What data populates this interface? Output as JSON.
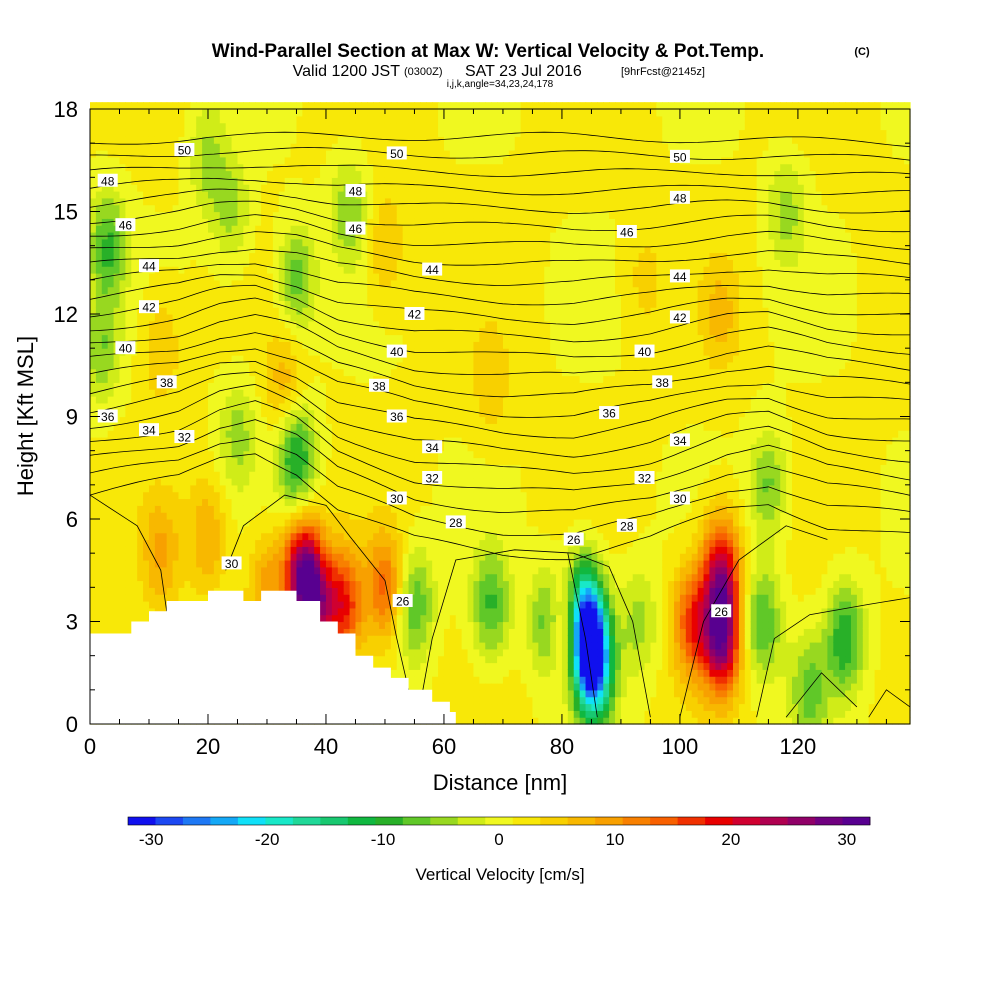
{
  "title": {
    "main": "Wind-Parallel Section at Max W: Vertical Velocity & Pot.Temp.",
    "copyright": "(C)",
    "valid_prefix": "Valid 1200 JST",
    "valid_zulu": "(0300Z)",
    "valid_date": "SAT 23 Jul 2016",
    "forecast": "[9hrFcst@2145z]",
    "indices": "i,j,k,angle=34,23,24,178"
  },
  "chart_data": {
    "type": "heatmap",
    "xlabel": "Distance [nm]",
    "ylabel": "Height [Kft MSL]",
    "xlim": [
      0,
      139
    ],
    "ylim": [
      0,
      18
    ],
    "x_ticks": [
      "0",
      "20",
      "40",
      "60",
      "80",
      "100",
      "120"
    ],
    "y_ticks": [
      "0",
      "3",
      "6",
      "9",
      "12",
      "15",
      "18"
    ],
    "colorbar": {
      "label": "Vertical Velocity [cm/s]",
      "range": [
        -32,
        32
      ],
      "tick_labels": [
        "-30",
        "-20",
        "-10",
        "0",
        "10",
        "20",
        "30"
      ],
      "colors": [
        "#1010ee",
        "#1c48f2",
        "#1e78f4",
        "#14a8f6",
        "#10e0f8",
        "#18e8c8",
        "#20d898",
        "#18c870",
        "#10b840",
        "#28b028",
        "#60c828",
        "#98d820",
        "#d0ec18",
        "#f0f820",
        "#f8e808",
        "#f8d000",
        "#f8b800",
        "#f8a000",
        "#f88000",
        "#f86000",
        "#f03000",
        "#e80000",
        "#d00030",
        "#b00050",
        "#900068",
        "#700080",
        "#580090"
      ]
    },
    "velocity_features": [
      {
        "x": 84.5,
        "z": 2.5,
        "w": -28
      },
      {
        "x": 83,
        "z": 3.5,
        "w": -18
      },
      {
        "x": 85.5,
        "z": 1.5,
        "w": -20
      },
      {
        "x": 81,
        "z": 3,
        "w": 18
      },
      {
        "x": 107,
        "z": 2.5,
        "w": 25
      },
      {
        "x": 107,
        "z": 4.5,
        "w": 20
      },
      {
        "x": 102,
        "z": 3,
        "w": 14
      },
      {
        "x": 36,
        "z": 4.5,
        "w": 22
      },
      {
        "x": 38,
        "z": 3.5,
        "w": 20
      },
      {
        "x": 43,
        "z": 3.5,
        "w": 16
      },
      {
        "x": 50,
        "z": 4,
        "w": 12
      },
      {
        "x": 30,
        "z": 4,
        "w": 8
      },
      {
        "x": 20,
        "z": 5.5,
        "w": 7
      },
      {
        "x": 12,
        "z": 5,
        "w": 7
      },
      {
        "x": 55,
        "z": 3.5,
        "w": -10
      },
      {
        "x": 68,
        "z": 3.5,
        "w": -10
      },
      {
        "x": 78,
        "z": 3,
        "w": -12
      },
      {
        "x": 93,
        "z": 3,
        "w": -6
      },
      {
        "x": 114,
        "z": 3,
        "w": -10
      },
      {
        "x": 128,
        "z": 2.5,
        "w": -12
      },
      {
        "x": 122,
        "z": 1,
        "w": -8
      },
      {
        "x": 35,
        "z": 7.8,
        "w": -13
      },
      {
        "x": 25,
        "z": 8.5,
        "w": -6
      },
      {
        "x": 3,
        "z": 14,
        "w": -10
      },
      {
        "x": 2,
        "z": 11,
        "w": -7
      },
      {
        "x": 35,
        "z": 13,
        "w": -9
      },
      {
        "x": 44,
        "z": 15,
        "w": -7
      },
      {
        "x": 20,
        "z": 16.5,
        "w": -6
      },
      {
        "x": 115,
        "z": 7,
        "w": -8
      },
      {
        "x": 118,
        "z": 15,
        "w": -6
      },
      {
        "x": 24,
        "z": 15,
        "w": -6
      },
      {
        "x": 50,
        "z": 14,
        "w": 5
      },
      {
        "x": 68,
        "z": 10,
        "w": 4
      },
      {
        "x": 107,
        "z": 12,
        "w": 5
      },
      {
        "x": 12,
        "z": 11,
        "w": 5
      },
      {
        "x": 33,
        "z": 10,
        "w": 6
      },
      {
        "x": 94,
        "z": 13,
        "w": 3
      }
    ],
    "terrain_profile": [
      {
        "x": 0,
        "z": 2.65
      },
      {
        "x": 7,
        "z": 2.65
      },
      {
        "x": 7,
        "z": 3
      },
      {
        "x": 10,
        "z": 3
      },
      {
        "x": 10,
        "z": 3.3
      },
      {
        "x": 13,
        "z": 3.3
      },
      {
        "x": 13,
        "z": 3.6
      },
      {
        "x": 20,
        "z": 3.6
      },
      {
        "x": 20,
        "z": 3.9
      },
      {
        "x": 26,
        "z": 3.9
      },
      {
        "x": 26,
        "z": 3.6
      },
      {
        "x": 29,
        "z": 3.6
      },
      {
        "x": 29,
        "z": 3.9
      },
      {
        "x": 35,
        "z": 3.9
      },
      {
        "x": 35,
        "z": 3.6
      },
      {
        "x": 39,
        "z": 3.6
      },
      {
        "x": 39,
        "z": 3
      },
      {
        "x": 42,
        "z": 3
      },
      {
        "x": 42,
        "z": 2.65
      },
      {
        "x": 45,
        "z": 2.65
      },
      {
        "x": 45,
        "z": 2
      },
      {
        "x": 48,
        "z": 2
      },
      {
        "x": 48,
        "z": 1.65
      },
      {
        "x": 51,
        "z": 1.65
      },
      {
        "x": 51,
        "z": 1.35
      },
      {
        "x": 54,
        "z": 1.35
      },
      {
        "x": 54,
        "z": 1
      },
      {
        "x": 58,
        "z": 1
      },
      {
        "x": 58,
        "z": 0.65
      },
      {
        "x": 61,
        "z": 0.65
      },
      {
        "x": 61,
        "z": 0.35
      },
      {
        "x": 62,
        "z": 0.35
      },
      {
        "x": 62,
        "z": 0
      }
    ],
    "theta_contours": {
      "interval": 1,
      "bottom_at_x": [
        {
          "x": 0,
          "z": 6.7
        },
        {
          "x": 15,
          "z": 7.2
        },
        {
          "x": 22,
          "z": 7.8
        },
        {
          "x": 28,
          "z": 8.0
        },
        {
          "x": 35,
          "z": 7.4
        },
        {
          "x": 42,
          "z": 6.3
        },
        {
          "x": 55,
          "z": 5.4
        },
        {
          "x": 70,
          "z": 5.0
        },
        {
          "x": 82,
          "z": 4.9
        },
        {
          "x": 95,
          "z": 5.4
        },
        {
          "x": 108,
          "z": 6.3
        },
        {
          "x": 115,
          "z": 6.5
        },
        {
          "x": 125,
          "z": 5.8
        },
        {
          "x": 139,
          "z": 5.5
        }
      ],
      "top_at_x": [
        {
          "x": 0,
          "z": 17.0
        },
        {
          "x": 20,
          "z": 17.2
        },
        {
          "x": 45,
          "z": 17.2
        },
        {
          "x": 80,
          "z": 17.2
        },
        {
          "x": 110,
          "z": 17.1
        },
        {
          "x": 139,
          "z": 17.0
        }
      ],
      "levels_low": [
        26,
        30
      ]
    },
    "theta_labels": [
      {
        "text": "50",
        "x": 16,
        "z": 16.8
      },
      {
        "text": "50",
        "x": 52,
        "z": 16.7
      },
      {
        "text": "50",
        "x": 100,
        "z": 16.6
      },
      {
        "text": "48",
        "x": 3,
        "z": 15.9
      },
      {
        "text": "48",
        "x": 45,
        "z": 15.6
      },
      {
        "text": "48",
        "x": 100,
        "z": 15.4
      },
      {
        "text": "46",
        "x": 6,
        "z": 14.6
      },
      {
        "text": "46",
        "x": 45,
        "z": 14.5
      },
      {
        "text": "46",
        "x": 91,
        "z": 14.4
      },
      {
        "text": "44",
        "x": 10,
        "z": 13.4
      },
      {
        "text": "44",
        "x": 58,
        "z": 13.3
      },
      {
        "text": "44",
        "x": 100,
        "z": 13.1
      },
      {
        "text": "42",
        "x": 10,
        "z": 12.2
      },
      {
        "text": "42",
        "x": 55,
        "z": 12.0
      },
      {
        "text": "42",
        "x": 100,
        "z": 11.9
      },
      {
        "text": "40",
        "x": 6,
        "z": 11.0
      },
      {
        "text": "40",
        "x": 52,
        "z": 10.9
      },
      {
        "text": "40",
        "x": 94,
        "z": 10.9
      },
      {
        "text": "38",
        "x": 13,
        "z": 10.0
      },
      {
        "text": "38",
        "x": 49,
        "z": 9.9
      },
      {
        "text": "38",
        "x": 97,
        "z": 10.0
      },
      {
        "text": "36",
        "x": 3,
        "z": 9.0
      },
      {
        "text": "36",
        "x": 52,
        "z": 9.0
      },
      {
        "text": "36",
        "x": 88,
        "z": 9.1
      },
      {
        "text": "34",
        "x": 10,
        "z": 8.6
      },
      {
        "text": "34",
        "x": 58,
        "z": 8.1
      },
      {
        "text": "34",
        "x": 100,
        "z": 8.3
      },
      {
        "text": "32",
        "x": 16,
        "z": 8.4
      },
      {
        "text": "32",
        "x": 58,
        "z": 7.2
      },
      {
        "text": "32",
        "x": 94,
        "z": 7.2
      },
      {
        "text": "30",
        "x": 52,
        "z": 6.6
      },
      {
        "text": "30",
        "x": 100,
        "z": 6.6
      },
      {
        "text": "28",
        "x": 62,
        "z": 5.9
      },
      {
        "text": "28",
        "x": 91,
        "z": 5.8
      },
      {
        "text": "26",
        "x": 82,
        "z": 5.4
      },
      {
        "text": "30",
        "x": 24,
        "z": 4.7
      },
      {
        "text": "26",
        "x": 53,
        "z": 3.6
      },
      {
        "text": "26",
        "x": 107,
        "z": 3.3
      }
    ]
  }
}
